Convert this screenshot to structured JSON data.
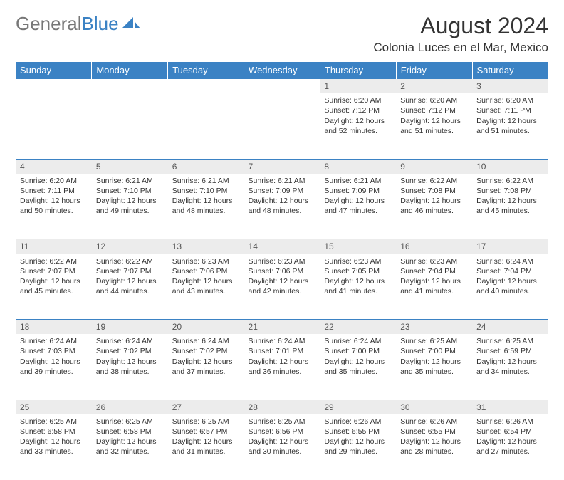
{
  "logo": {
    "text_gray": "General",
    "text_blue": "Blue"
  },
  "title": "August 2024",
  "location": "Colonia Luces en el Mar, Mexico",
  "colors": {
    "header_bg": "#3b82c4",
    "header_text": "#ffffff",
    "daynum_bg": "#ececec",
    "border": "#3b82c4",
    "body_text": "#333333"
  },
  "day_headers": [
    "Sunday",
    "Monday",
    "Tuesday",
    "Wednesday",
    "Thursday",
    "Friday",
    "Saturday"
  ],
  "weeks": [
    [
      null,
      null,
      null,
      null,
      {
        "n": "1",
        "sunrise": "Sunrise: 6:20 AM",
        "sunset": "Sunset: 7:12 PM",
        "daylight": "Daylight: 12 hours and 52 minutes."
      },
      {
        "n": "2",
        "sunrise": "Sunrise: 6:20 AM",
        "sunset": "Sunset: 7:12 PM",
        "daylight": "Daylight: 12 hours and 51 minutes."
      },
      {
        "n": "3",
        "sunrise": "Sunrise: 6:20 AM",
        "sunset": "Sunset: 7:11 PM",
        "daylight": "Daylight: 12 hours and 51 minutes."
      }
    ],
    [
      {
        "n": "4",
        "sunrise": "Sunrise: 6:20 AM",
        "sunset": "Sunset: 7:11 PM",
        "daylight": "Daylight: 12 hours and 50 minutes."
      },
      {
        "n": "5",
        "sunrise": "Sunrise: 6:21 AM",
        "sunset": "Sunset: 7:10 PM",
        "daylight": "Daylight: 12 hours and 49 minutes."
      },
      {
        "n": "6",
        "sunrise": "Sunrise: 6:21 AM",
        "sunset": "Sunset: 7:10 PM",
        "daylight": "Daylight: 12 hours and 48 minutes."
      },
      {
        "n": "7",
        "sunrise": "Sunrise: 6:21 AM",
        "sunset": "Sunset: 7:09 PM",
        "daylight": "Daylight: 12 hours and 48 minutes."
      },
      {
        "n": "8",
        "sunrise": "Sunrise: 6:21 AM",
        "sunset": "Sunset: 7:09 PM",
        "daylight": "Daylight: 12 hours and 47 minutes."
      },
      {
        "n": "9",
        "sunrise": "Sunrise: 6:22 AM",
        "sunset": "Sunset: 7:08 PM",
        "daylight": "Daylight: 12 hours and 46 minutes."
      },
      {
        "n": "10",
        "sunrise": "Sunrise: 6:22 AM",
        "sunset": "Sunset: 7:08 PM",
        "daylight": "Daylight: 12 hours and 45 minutes."
      }
    ],
    [
      {
        "n": "11",
        "sunrise": "Sunrise: 6:22 AM",
        "sunset": "Sunset: 7:07 PM",
        "daylight": "Daylight: 12 hours and 45 minutes."
      },
      {
        "n": "12",
        "sunrise": "Sunrise: 6:22 AM",
        "sunset": "Sunset: 7:07 PM",
        "daylight": "Daylight: 12 hours and 44 minutes."
      },
      {
        "n": "13",
        "sunrise": "Sunrise: 6:23 AM",
        "sunset": "Sunset: 7:06 PM",
        "daylight": "Daylight: 12 hours and 43 minutes."
      },
      {
        "n": "14",
        "sunrise": "Sunrise: 6:23 AM",
        "sunset": "Sunset: 7:06 PM",
        "daylight": "Daylight: 12 hours and 42 minutes."
      },
      {
        "n": "15",
        "sunrise": "Sunrise: 6:23 AM",
        "sunset": "Sunset: 7:05 PM",
        "daylight": "Daylight: 12 hours and 41 minutes."
      },
      {
        "n": "16",
        "sunrise": "Sunrise: 6:23 AM",
        "sunset": "Sunset: 7:04 PM",
        "daylight": "Daylight: 12 hours and 41 minutes."
      },
      {
        "n": "17",
        "sunrise": "Sunrise: 6:24 AM",
        "sunset": "Sunset: 7:04 PM",
        "daylight": "Daylight: 12 hours and 40 minutes."
      }
    ],
    [
      {
        "n": "18",
        "sunrise": "Sunrise: 6:24 AM",
        "sunset": "Sunset: 7:03 PM",
        "daylight": "Daylight: 12 hours and 39 minutes."
      },
      {
        "n": "19",
        "sunrise": "Sunrise: 6:24 AM",
        "sunset": "Sunset: 7:02 PM",
        "daylight": "Daylight: 12 hours and 38 minutes."
      },
      {
        "n": "20",
        "sunrise": "Sunrise: 6:24 AM",
        "sunset": "Sunset: 7:02 PM",
        "daylight": "Daylight: 12 hours and 37 minutes."
      },
      {
        "n": "21",
        "sunrise": "Sunrise: 6:24 AM",
        "sunset": "Sunset: 7:01 PM",
        "daylight": "Daylight: 12 hours and 36 minutes."
      },
      {
        "n": "22",
        "sunrise": "Sunrise: 6:24 AM",
        "sunset": "Sunset: 7:00 PM",
        "daylight": "Daylight: 12 hours and 35 minutes."
      },
      {
        "n": "23",
        "sunrise": "Sunrise: 6:25 AM",
        "sunset": "Sunset: 7:00 PM",
        "daylight": "Daylight: 12 hours and 35 minutes."
      },
      {
        "n": "24",
        "sunrise": "Sunrise: 6:25 AM",
        "sunset": "Sunset: 6:59 PM",
        "daylight": "Daylight: 12 hours and 34 minutes."
      }
    ],
    [
      {
        "n": "25",
        "sunrise": "Sunrise: 6:25 AM",
        "sunset": "Sunset: 6:58 PM",
        "daylight": "Daylight: 12 hours and 33 minutes."
      },
      {
        "n": "26",
        "sunrise": "Sunrise: 6:25 AM",
        "sunset": "Sunset: 6:58 PM",
        "daylight": "Daylight: 12 hours and 32 minutes."
      },
      {
        "n": "27",
        "sunrise": "Sunrise: 6:25 AM",
        "sunset": "Sunset: 6:57 PM",
        "daylight": "Daylight: 12 hours and 31 minutes."
      },
      {
        "n": "28",
        "sunrise": "Sunrise: 6:25 AM",
        "sunset": "Sunset: 6:56 PM",
        "daylight": "Daylight: 12 hours and 30 minutes."
      },
      {
        "n": "29",
        "sunrise": "Sunrise: 6:26 AM",
        "sunset": "Sunset: 6:55 PM",
        "daylight": "Daylight: 12 hours and 29 minutes."
      },
      {
        "n": "30",
        "sunrise": "Sunrise: 6:26 AM",
        "sunset": "Sunset: 6:55 PM",
        "daylight": "Daylight: 12 hours and 28 minutes."
      },
      {
        "n": "31",
        "sunrise": "Sunrise: 6:26 AM",
        "sunset": "Sunset: 6:54 PM",
        "daylight": "Daylight: 12 hours and 27 minutes."
      }
    ]
  ]
}
